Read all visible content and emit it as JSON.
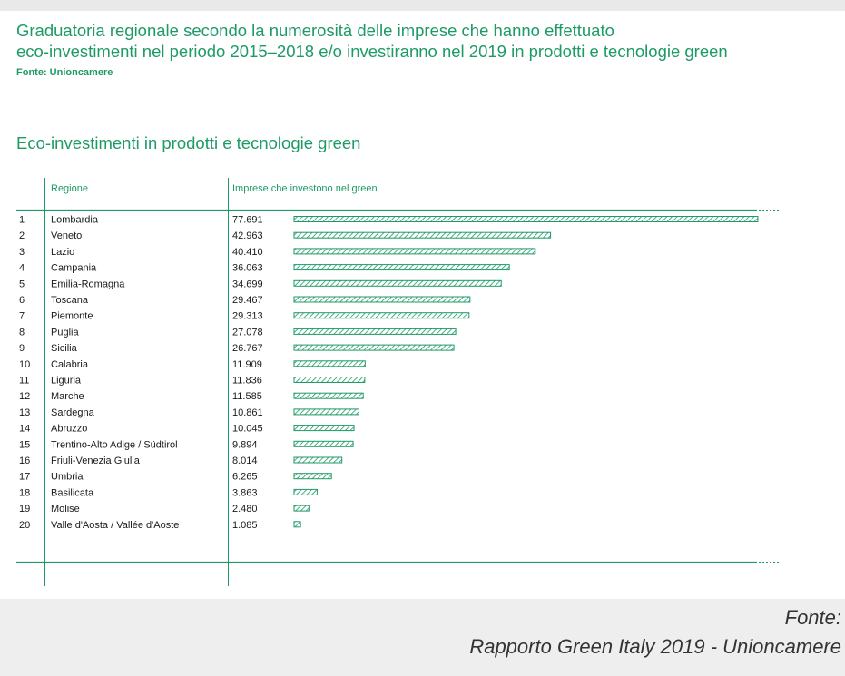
{
  "header": {
    "title_line1": "Graduatoria regionale secondo la numerosità delle imprese che hanno effettuato",
    "title_line2": "eco-investimenti nel periodo 2015–2018 e/o investiranno nel 2019 in prodotti e tecnologie green",
    "source": "Fonte: Unioncamere"
  },
  "chart_title": "Eco-investimenti in prodotti e tecnologie green",
  "columns": {
    "region": "Regione",
    "value": "Imprese che investono nel green"
  },
  "footer": {
    "line1": "Fonte:",
    "line2": "Rapporto Green Italy 2019  - Unioncamere"
  },
  "colors": {
    "accent": "#1e9a67",
    "text": "#1a1a1a",
    "footer_text": "#333333"
  },
  "chart_data": {
    "type": "bar",
    "orientation": "horizontal",
    "ranks": [
      "1",
      "2",
      "3",
      "4",
      "5",
      "6",
      "7",
      "8",
      "9",
      "10",
      "11",
      "12",
      "13",
      "14",
      "15",
      "16",
      "17",
      "18",
      "19",
      "20"
    ],
    "categories": [
      "Lombardia",
      "Veneto",
      "Lazio",
      "Campania",
      "Emilia-Romagna",
      "Toscana",
      "Piemonte",
      "Puglia",
      "Sicilia",
      "Calabria",
      "Liguria",
      "Marche",
      "Sardegna",
      "Abruzzo",
      "Trentino-Alto Adige / Südtirol",
      "Friuli-Venezia Giulia",
      "Umbria",
      "Basilicata",
      "Molise",
      "Valle d'Aosta / Vallée d'Aoste"
    ],
    "value_labels": [
      "77.691",
      "42.963",
      "40.410",
      "36.063",
      "34.699",
      "29.467",
      "29.313",
      "27.078",
      "26.767",
      "11.909",
      "11.836",
      "11.585",
      "10.861",
      "10.045",
      "9.894",
      "8.014",
      "6.265",
      "3.863",
      "2.480",
      "1.085"
    ],
    "values": [
      77691,
      42963,
      40410,
      36063,
      34699,
      29467,
      29313,
      27078,
      26767,
      11909,
      11836,
      11585,
      10861,
      10045,
      9894,
      8014,
      6265,
      3863,
      2480,
      1085
    ],
    "xlim": [
      0,
      77691
    ],
    "bar_fill": "hatched"
  }
}
